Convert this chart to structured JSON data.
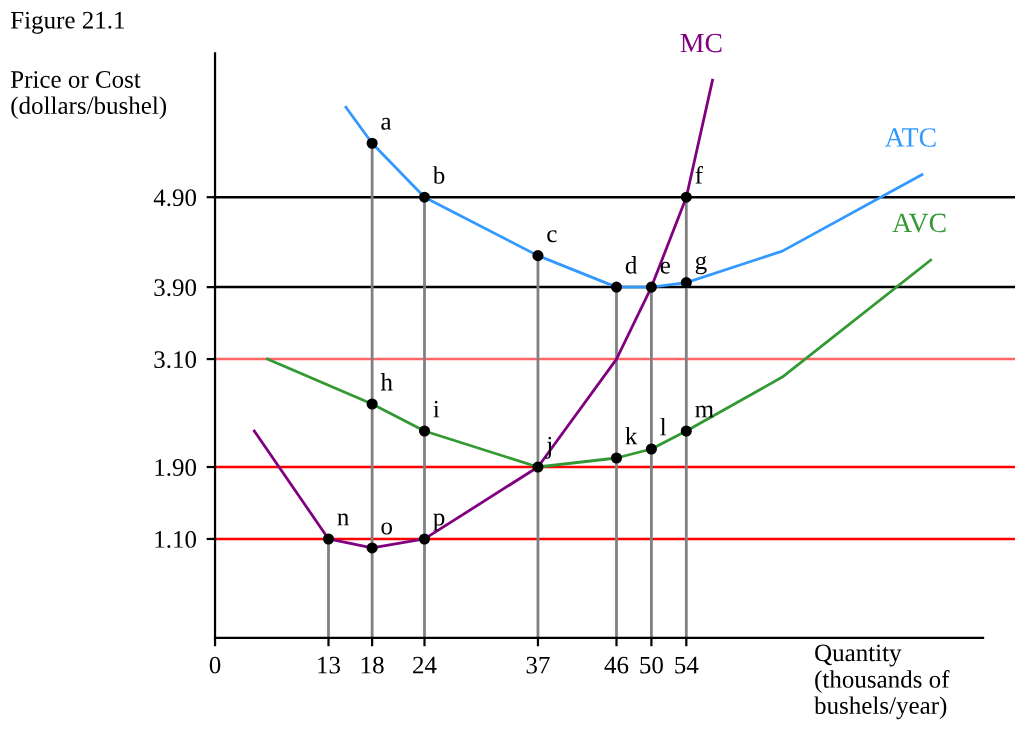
{
  "chart_data": {
    "type": "line",
    "title": "Figure 21.1",
    "ylabel": "Price or Cost\n(dollars/bushel)",
    "xlabel": "Quantity\n(thousands of\nbushels/year)",
    "xlim": [
      0,
      88
    ],
    "ylim": [
      0,
      6.5
    ],
    "xticks": [
      0,
      13,
      18,
      24,
      37,
      46,
      50,
      54
    ],
    "yticks": [
      {
        "value": 1.1,
        "label": "1.10"
      },
      {
        "value": 1.9,
        "label": "1.90"
      },
      {
        "value": 3.1,
        "label": "3.10"
      },
      {
        "value": 3.9,
        "label": "3.90"
      },
      {
        "value": 4.9,
        "label": "4.90"
      }
    ],
    "grid": "x",
    "legend": false,
    "ref_lines": [
      {
        "axis": "y",
        "value": 4.9,
        "color": "#000000"
      },
      {
        "axis": "y",
        "value": 3.9,
        "color": "#000000"
      },
      {
        "axis": "y",
        "value": 3.1,
        "color": "#ff6666"
      },
      {
        "axis": "y",
        "value": 1.9,
        "color": "#ff0000"
      },
      {
        "axis": "y",
        "value": 1.1,
        "color": "#ff0000"
      }
    ],
    "series": [
      {
        "name": "MC",
        "color": "#800080",
        "x": [
          4.5,
          13,
          18,
          24,
          37,
          46,
          50,
          54,
          57
        ],
        "values": [
          2.3,
          1.1,
          1.0,
          1.1,
          1.9,
          3.1,
          3.9,
          4.9,
          6.2
        ]
      },
      {
        "name": "ATC",
        "color": "#3399ff",
        "x": [
          15,
          18,
          24,
          37,
          46,
          50,
          54,
          65,
          81
        ],
        "values": [
          5.9,
          5.5,
          4.9,
          4.25,
          3.9,
          3.9,
          3.95,
          4.3,
          5.15
        ]
      },
      {
        "name": "AVC",
        "color": "#339933",
        "x": [
          6,
          18,
          24,
          37,
          46,
          50,
          54,
          65,
          82
        ],
        "values": [
          3.1,
          2.6,
          2.3,
          1.9,
          2.0,
          2.1,
          2.3,
          2.9,
          4.2
        ]
      },
      {
        "type": "scatter",
        "color": "#000000",
        "marker": "circle",
        "x": [
          18,
          24,
          37,
          46,
          50,
          54,
          54,
          18,
          24,
          37,
          46,
          50,
          54,
          13,
          18,
          24
        ],
        "values": [
          5.5,
          4.9,
          4.25,
          3.9,
          3.9,
          4.9,
          3.95,
          2.6,
          2.3,
          1.9,
          2.0,
          2.1,
          2.3,
          1.1,
          1.0,
          1.1
        ]
      }
    ],
    "annotations": [
      {
        "text": "a",
        "x": 18,
        "y": 5.5
      },
      {
        "text": "b",
        "x": 24,
        "y": 4.9
      },
      {
        "text": "c",
        "x": 37,
        "y": 4.25
      },
      {
        "text": "d",
        "x": 46,
        "y": 3.9
      },
      {
        "text": "e",
        "x": 50,
        "y": 3.9
      },
      {
        "text": "f",
        "x": 54,
        "y": 4.9
      },
      {
        "text": "g",
        "x": 54,
        "y": 3.95
      },
      {
        "text": "h",
        "x": 18,
        "y": 2.6
      },
      {
        "text": "i",
        "x": 24,
        "y": 2.3
      },
      {
        "text": "j",
        "x": 37,
        "y": 1.9
      },
      {
        "text": "k",
        "x": 46,
        "y": 2.0
      },
      {
        "text": "l",
        "x": 50,
        "y": 2.1
      },
      {
        "text": "m",
        "x": 54,
        "y": 2.3
      },
      {
        "text": "n",
        "x": 13,
        "y": 1.1
      },
      {
        "text": "o",
        "x": 18,
        "y": 1.0
      },
      {
        "text": "p",
        "x": 24,
        "y": 1.1
      }
    ]
  }
}
